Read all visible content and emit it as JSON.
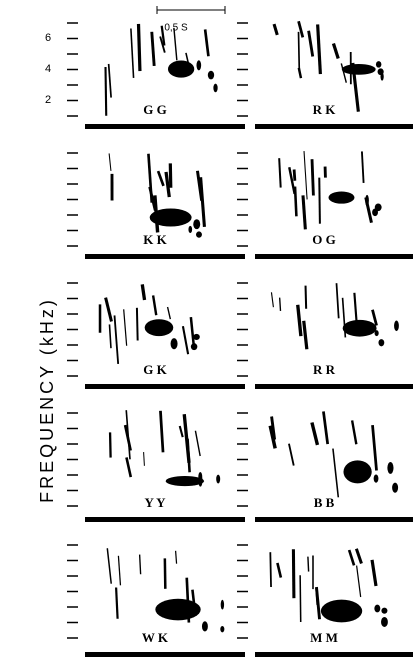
{
  "axis_label": "FREQUENCY (kHz)",
  "scale_bar": "0,5 S",
  "tick_labels": [
    "6",
    "4",
    "2"
  ],
  "panels": [
    {
      "label": "G G"
    },
    {
      "label": "R K"
    },
    {
      "label": "K K"
    },
    {
      "label": "O G"
    },
    {
      "label": "G K"
    },
    {
      "label": "R R"
    },
    {
      "label": "Y Y"
    },
    {
      "label": "B B"
    },
    {
      "label": "W K"
    },
    {
      "label": "M M"
    }
  ]
}
